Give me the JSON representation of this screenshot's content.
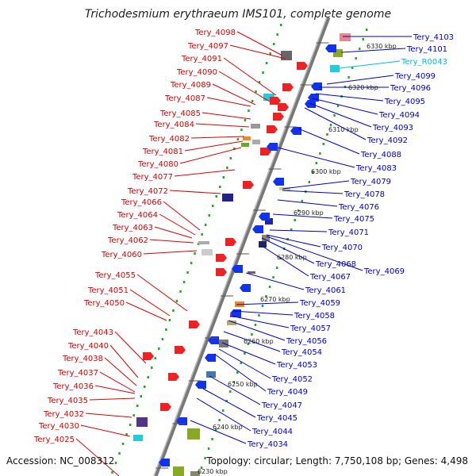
{
  "title": "Trichodesmium erythraeum IMS101, complete genome",
  "accession": "Accession: NC_008312",
  "topology": "Topology: circular; Length: 7,750,108 bp; Genes: 4,498",
  "colors": {
    "left_label": "#dd0000",
    "right_label": "#0000cc",
    "rna_label": "#00bbee",
    "backbone": "#888888",
    "dots": "#22aa22"
  },
  "left_labels": [
    "Tery_4098",
    "Tery_4097",
    "Tery_4091",
    "Tery_4090",
    "Tery_4089",
    "Tery_4087",
    "Tery_4085",
    "Tery_4084",
    "Tery_4082",
    "Tery_4081",
    "Tery_4080",
    "Tery_4077",
    "Tery_4072",
    "Tery_4066",
    "Tery_4064",
    "Tery_4063",
    "Tery_4062",
    "Tery_4060",
    "Tery_4055",
    "Tery_4051",
    "Tery_4050",
    "Tery_4043",
    "Tery_4040",
    "Tery_4038",
    "Tery_4037",
    "Tery_4036",
    "Tery_4035",
    "Tery_4032",
    "Tery_4030",
    "Tery_4025"
  ],
  "right_labels": [
    "Tery_4103",
    "Tery_4101",
    "Tery_R0043",
    "Tery_4099",
    "Tery_4096",
    "Tery_4095",
    "Tery_4094",
    "Tery_4093",
    "Tery_4092",
    "Tery_4088",
    "Tery_4083",
    "Tery_4079",
    "Tery_4078",
    "Tery_4076",
    "Tery_4075",
    "Tery_4071",
    "Tery_4070",
    "Tery_4068",
    "Tery_4069",
    "Tery_4067",
    "Tery_4061",
    "Tery_4059",
    "Tery_4058",
    "Tery_4057",
    "Tery_4056",
    "Tery_4054",
    "Tery_4053",
    "Tery_4052",
    "Tery_4049",
    "Tery_4047",
    "Tery_4045",
    "Tery_4044",
    "Tery_4034"
  ],
  "kbp_labels": [
    "6330 kbp",
    "6320 kbp",
    "6310 kbp",
    "6300 kbp",
    "6290 kbp",
    "6280 kbp",
    "6270 kbp",
    "6260 kbp",
    "6250 kbp",
    "6240 kbp",
    "6230 kbp"
  ]
}
